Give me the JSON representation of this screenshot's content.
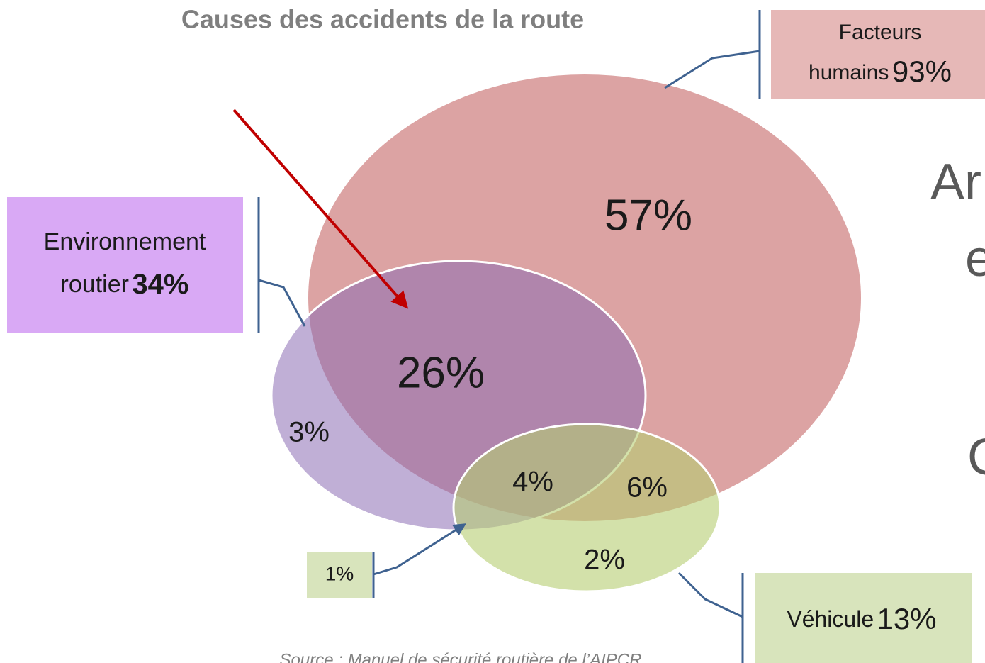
{
  "title": "Causes des accidents de la route",
  "regions": {
    "human_only": "57%",
    "human_env": "26%",
    "env_only": "3%",
    "all_three": "4%",
    "human_vehicle": "6%",
    "vehicle_only": "2%",
    "env_vehicle": "1%"
  },
  "labels": {
    "human": {
      "name_line1": "Facteurs",
      "name_line2": "humains",
      "value": "93%"
    },
    "environment": {
      "name_line1": "Environnement",
      "name_line2": "routier",
      "value": "34%"
    },
    "vehicle": {
      "name": "Véhicule",
      "value": "13%"
    }
  },
  "source": "Source : Manuel de sécurité routière de l’AIPCR",
  "cut_text": [
    "Ar",
    "e",
    "C"
  ]
}
